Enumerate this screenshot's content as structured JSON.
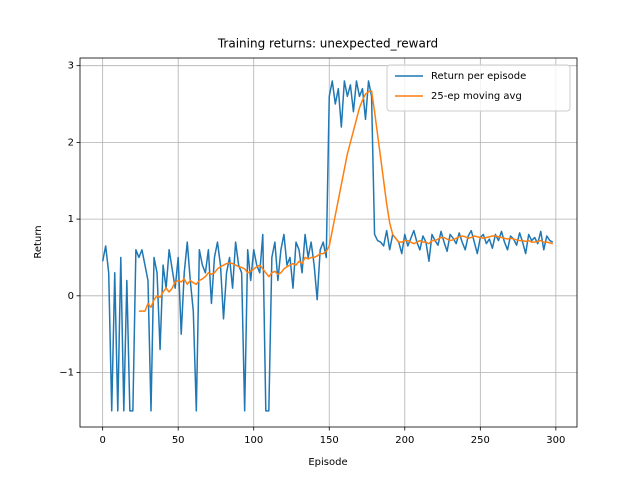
{
  "chart_data": {
    "type": "line",
    "title": "Training returns: unexpected_reward",
    "xlabel": "Episode",
    "ylabel": "Return",
    "x": [
      0,
      2,
      4,
      6,
      8,
      10,
      12,
      14,
      16,
      18,
      20,
      22,
      24,
      26,
      28,
      30,
      32,
      34,
      36,
      38,
      40,
      42,
      44,
      46,
      48,
      50,
      52,
      54,
      56,
      58,
      60,
      62,
      64,
      66,
      68,
      70,
      72,
      74,
      76,
      78,
      80,
      82,
      84,
      86,
      88,
      90,
      92,
      94,
      96,
      98,
      100,
      102,
      104,
      106,
      108,
      110,
      112,
      114,
      116,
      118,
      120,
      122,
      124,
      126,
      128,
      130,
      132,
      134,
      136,
      138,
      140,
      142,
      144,
      146,
      148,
      150,
      152,
      154,
      156,
      158,
      160,
      162,
      164,
      166,
      168,
      170,
      172,
      174,
      176,
      178,
      180,
      182,
      184,
      186,
      188,
      190,
      192,
      194,
      196,
      198,
      200,
      202,
      204,
      206,
      208,
      210,
      212,
      214,
      216,
      218,
      220,
      222,
      224,
      226,
      228,
      230,
      232,
      234,
      236,
      238,
      240,
      242,
      244,
      246,
      248,
      250,
      252,
      254,
      256,
      258,
      260,
      262,
      264,
      266,
      268,
      270,
      272,
      274,
      276,
      278,
      280,
      282,
      284,
      286,
      288,
      290,
      292,
      294,
      296,
      298
    ],
    "series": [
      {
        "name": "Return per episode",
        "color": "#1f77b4",
        "values": [
          0.45,
          0.65,
          0.3,
          -1.5,
          0.3,
          -1.5,
          0.5,
          -1.5,
          0.2,
          -1.5,
          -1.5,
          0.6,
          0.5,
          0.6,
          0.4,
          0.2,
          -1.5,
          0.5,
          0.3,
          -0.7,
          0.4,
          0.1,
          0.6,
          0.35,
          0.1,
          0.5,
          -0.5,
          0.3,
          0.7,
          0.2,
          -0.2,
          -1.5,
          0.6,
          0.4,
          0.3,
          0.6,
          -0.1,
          0.5,
          0.7,
          0.4,
          -0.3,
          0.3,
          0.5,
          0.1,
          0.7,
          0.4,
          0.3,
          -1.5,
          0.6,
          0.2,
          0.6,
          0.4,
          0.3,
          0.8,
          -1.5,
          -1.5,
          0.5,
          0.7,
          0.2,
          0.6,
          0.8,
          0.4,
          0.5,
          0.1,
          0.7,
          0.6,
          0.3,
          0.8,
          0.5,
          0.7,
          0.4,
          -0.05,
          0.6,
          0.7,
          0.5,
          2.6,
          2.8,
          2.5,
          2.7,
          2.2,
          2.8,
          2.6,
          2.75,
          2.4,
          2.8,
          2.6,
          2.7,
          2.3,
          2.8,
          2.6,
          0.8,
          0.72,
          0.7,
          0.65,
          0.85,
          0.6,
          0.8,
          0.75,
          0.7,
          0.55,
          0.8,
          0.65,
          0.75,
          0.85,
          0.7,
          0.6,
          0.78,
          0.7,
          0.45,
          0.8,
          0.72,
          0.66,
          0.84,
          0.7,
          0.58,
          0.8,
          0.75,
          0.68,
          0.82,
          0.7,
          0.6,
          0.78,
          0.85,
          0.7,
          0.55,
          0.76,
          0.8,
          0.68,
          0.74,
          0.62,
          0.8,
          0.72,
          0.84,
          0.7,
          0.6,
          0.78,
          0.74,
          0.66,
          0.82,
          0.7,
          0.55,
          0.8,
          0.72,
          0.76,
          0.68,
          0.84,
          0.6,
          0.78,
          0.72,
          0.7
        ]
      },
      {
        "name": "25-ep moving avg",
        "color": "#ff7f0e",
        "values": [
          null,
          null,
          null,
          null,
          null,
          null,
          null,
          null,
          null,
          null,
          null,
          null,
          -0.2,
          -0.2,
          -0.2,
          -0.1,
          -0.15,
          -0.05,
          0.0,
          -0.02,
          0.05,
          0.1,
          0.05,
          0.1,
          0.18,
          0.2,
          0.18,
          0.22,
          0.15,
          0.2,
          0.17,
          0.15,
          0.2,
          0.22,
          0.25,
          0.3,
          0.28,
          0.3,
          0.35,
          0.38,
          0.4,
          0.42,
          0.43,
          0.42,
          0.4,
          0.38,
          0.37,
          0.35,
          0.3,
          0.32,
          0.35,
          0.38,
          0.4,
          0.35,
          0.3,
          0.25,
          0.3,
          0.32,
          0.28,
          0.3,
          0.35,
          0.38,
          0.4,
          0.42,
          0.4,
          0.45,
          0.42,
          0.5,
          0.48,
          0.5,
          0.5,
          0.52,
          0.55,
          0.55,
          0.58,
          0.65,
          0.85,
          1.05,
          1.25,
          1.45,
          1.65,
          1.85,
          2.0,
          2.15,
          2.3,
          2.45,
          2.55,
          2.63,
          2.66,
          2.67,
          2.4,
          2.1,
          1.8,
          1.5,
          1.2,
          0.95,
          0.8,
          0.75,
          0.7,
          0.7,
          0.72,
          0.72,
          0.7,
          0.68,
          0.7,
          0.72,
          0.7,
          0.7,
          0.68,
          0.72,
          0.72,
          0.74,
          0.76,
          0.76,
          0.74,
          0.72,
          0.73,
          0.75,
          0.77,
          0.78,
          0.77,
          0.75,
          0.76,
          0.78,
          0.77,
          0.76,
          0.75,
          0.76,
          0.77,
          0.78,
          0.78,
          0.77,
          0.76,
          0.75,
          0.74,
          0.75,
          0.74,
          0.73,
          0.72,
          0.72,
          0.71,
          0.72,
          0.7,
          0.7,
          0.71,
          0.72,
          0.7,
          0.7,
          0.69,
          0.68
        ]
      }
    ],
    "xlim": [
      -15,
      314
    ],
    "xticks": [
      0,
      50,
      100,
      150,
      200,
      250,
      300
    ],
    "ylim": [
      -1.71,
      3.1
    ],
    "yticks": [
      {
        "value": -1,
        "label": "−1"
      },
      0,
      1,
      2,
      3
    ],
    "grid": true,
    "legend": "upper right"
  }
}
